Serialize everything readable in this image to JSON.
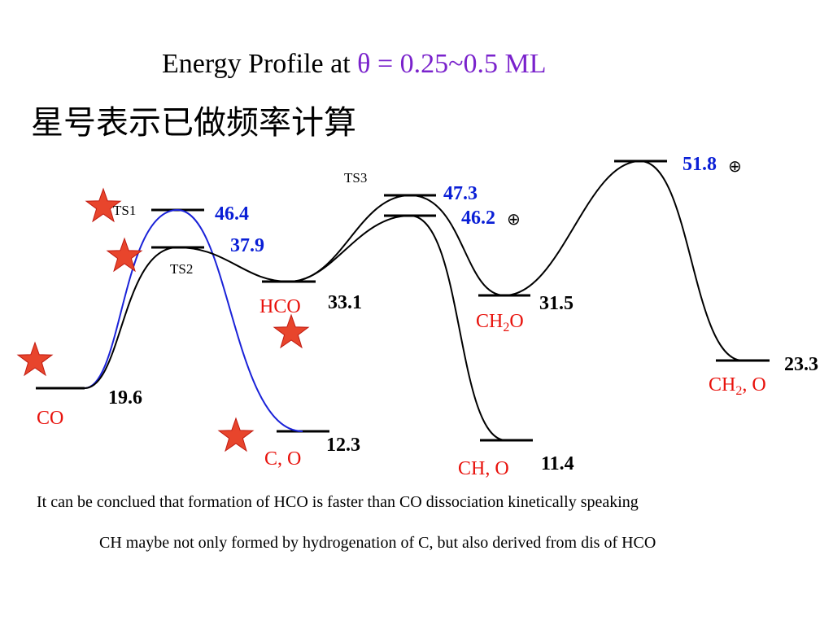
{
  "title": {
    "prefix": "Energy Profile at ",
    "highlight": "θ = 0.25~0.5 ML"
  },
  "subtitle": "星号表示已做频率计算",
  "energies": {
    "co": "19.6",
    "ts1": "46.4",
    "ts2": "37.9",
    "hco": "33.1",
    "ts3": "47.3",
    "ts4": "46.2",
    "ch2o": "31.5",
    "ts5": "51.8",
    "ch2_o": "23.3",
    "c_o": "12.3",
    "ch_o": "11.4"
  },
  "transition_labels": {
    "ts1": "TS1",
    "ts2": "TS2",
    "ts3": "TS3"
  },
  "species": {
    "co": "CO",
    "hco": "HCO",
    "ch2o": "CH2O",
    "ch2_o": "CH2, O",
    "c_o": "C, O",
    "ch_o": "CH, O"
  },
  "markers": {
    "circle_plus": "⊕"
  },
  "notes": [
    "It can be conclued that formation of HCO is faster than CO dissociation kinetically speaking",
    "CH maybe not only formed by hydrogenation of C, but also derived from dis of HCO"
  ],
  "colors": {
    "blue_energy": "#0a1fd6",
    "species_red": "#e8120c",
    "title_highlight": "#7a22cc",
    "curve_blue": "#1a22d8",
    "star_fill": "#e8452c",
    "star_stroke": "#c01a10"
  },
  "icons": [
    "star-icon",
    "circle-plus-icon"
  ]
}
